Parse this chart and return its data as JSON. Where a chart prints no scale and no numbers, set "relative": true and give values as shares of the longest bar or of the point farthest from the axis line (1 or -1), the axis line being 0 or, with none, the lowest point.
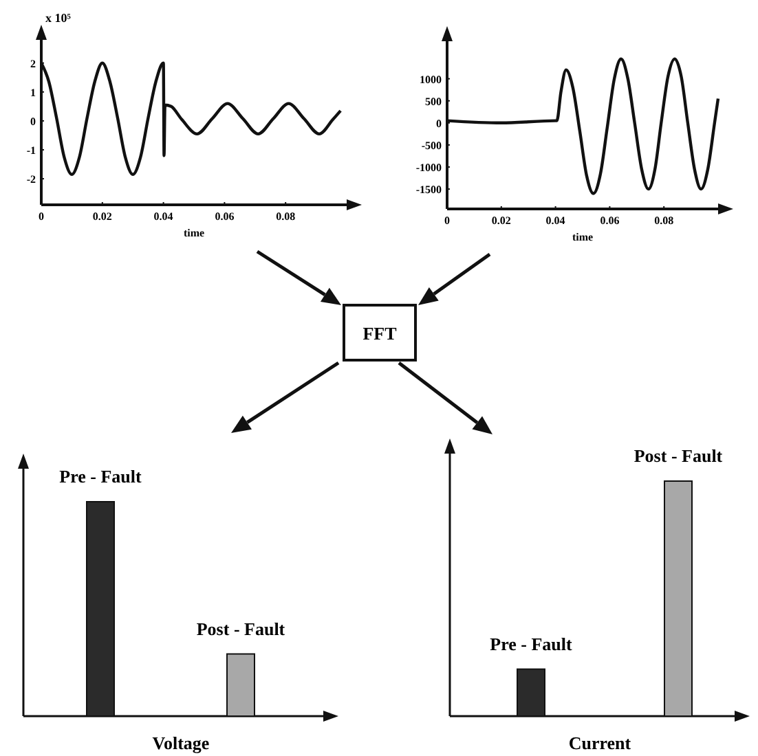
{
  "chart_data": [
    {
      "type": "line",
      "ylabel": "x 10⁵",
      "xlabel": "time",
      "xlim": [
        0,
        0.1
      ],
      "ylim": [
        -2.9,
        2.8
      ],
      "xticks": [
        0,
        0.02,
        0.04,
        0.06,
        0.08
      ],
      "yticks": [
        -2,
        -1,
        0,
        1,
        2
      ],
      "series": [
        {
          "color": "#111111",
          "x": [
            0,
            0.0025,
            0.005,
            0.0075,
            0.01,
            0.0125,
            0.015,
            0.0175,
            0.02,
            0.0225,
            0.025,
            0.0275,
            0.03,
            0.0325,
            0.035,
            0.0375,
            0.04,
            0.0402,
            0.0405,
            0.0425,
            0.046,
            0.051,
            0.056,
            0.061,
            0.066,
            0.071,
            0.076,
            0.081,
            0.086,
            0.091,
            0.0955,
            0.098
          ],
          "values": [
            2,
            1.35,
            0.1,
            -1.25,
            -1.85,
            -1.25,
            0.1,
            1.35,
            2,
            1.35,
            0.1,
            -1.25,
            -1.85,
            -1.25,
            0.1,
            1.35,
            2,
            -1.2,
            0.55,
            0.5,
            0.05,
            -0.45,
            0.08,
            0.6,
            0.08,
            -0.45,
            0.08,
            0.6,
            0.08,
            -0.45,
            0.05,
            0.35
          ]
        }
      ]
    },
    {
      "type": "line",
      "xlabel": "time",
      "xlim": [
        0,
        0.1
      ],
      "ylim": [
        -1950,
        1850
      ],
      "xticks": [
        0,
        0.02,
        0.04,
        0.06,
        0.08
      ],
      "yticks": [
        -1500,
        -1000,
        -500,
        0,
        500,
        1000
      ],
      "series": [
        {
          "color": "#111111",
          "x": [
            0,
            0.02,
            0.04,
            0.0405,
            0.042,
            0.0439,
            0.0464,
            0.049,
            0.0515,
            0.054,
            0.0566,
            0.0591,
            0.0617,
            0.0642,
            0.0667,
            0.0692,
            0.0718,
            0.0743,
            0.0767,
            0.079,
            0.0815,
            0.084,
            0.0864,
            0.0888,
            0.0913,
            0.0937,
            0.0962,
            0.0987,
            0.1
          ],
          "values": [
            50,
            0,
            50,
            50,
            700,
            1200,
            800,
            -200,
            -1200,
            -1600,
            -1150,
            -100,
            1000,
            1450,
            1000,
            0,
            -1050,
            -1500,
            -1050,
            0,
            1050,
            1450,
            1050,
            0,
            -1050,
            -1500,
            -1050,
            0,
            550
          ]
        }
      ]
    },
    {
      "type": "other",
      "annotations": [
        "FFT"
      ]
    },
    {
      "type": "bar",
      "relative": true,
      "xlabel": "Voltage",
      "categories": [
        "Pre - Fault",
        "Post - Fault"
      ],
      "values": [
        1,
        0.29
      ],
      "colors": [
        "#2b2b2b",
        "#a8a8a8"
      ]
    },
    {
      "type": "bar",
      "relative": true,
      "xlabel": "Current",
      "categories": [
        "Pre - Fault",
        "Post - Fault"
      ],
      "values": [
        0.2,
        1
      ],
      "colors": [
        "#2b2b2b",
        "#a8a8a8"
      ]
    }
  ]
}
